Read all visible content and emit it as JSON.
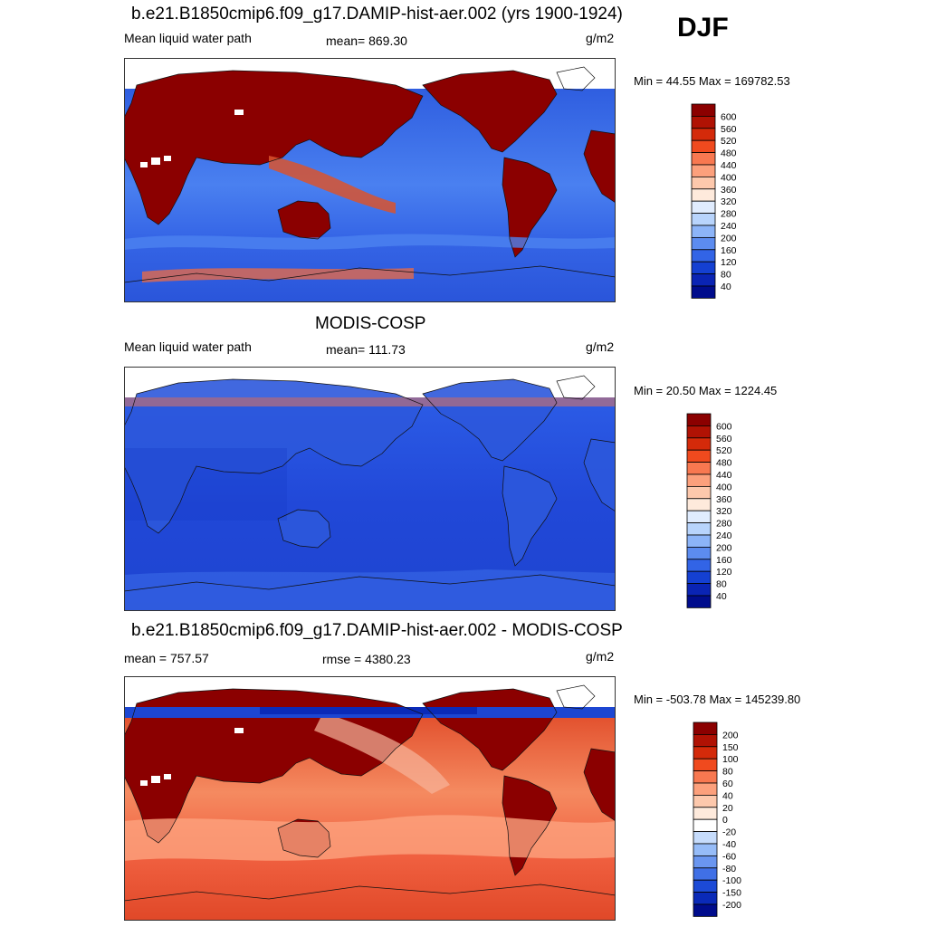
{
  "season": "DJF",
  "units": "g/m2",
  "panels": [
    {
      "title": "b.e21.B1850cmip6.f09_g17.DAMIP-hist-aer.002 (yrs 1900-1924)",
      "left_label": "Mean liquid water path",
      "center_label": "mean= 869.30",
      "units": "g/m2",
      "minmax": "Min =  44.55 Max = 169782.53",
      "field": "model"
    },
    {
      "title": "MODIS-COSP",
      "left_label": "Mean liquid water path",
      "center_label": "mean= 111.73",
      "units": "g/m2",
      "minmax": "Min =  20.50 Max = 1224.45",
      "field": "obs"
    },
    {
      "title": "b.e21.B1850cmip6.f09_g17.DAMIP-hist-aer.002 - MODIS-COSP",
      "left_label": "mean = 757.57",
      "center_label": "rmse = 4380.23",
      "units": "g/m2",
      "minmax": "Min = -503.78 Max = 145239.80",
      "field": "diff"
    }
  ],
  "colorbars": {
    "absolute": {
      "labels": [
        "600",
        "560",
        "520",
        "480",
        "440",
        "400",
        "360",
        "320",
        "280",
        "240",
        "200",
        "160",
        "120",
        "80",
        "40"
      ],
      "colors": [
        "#8B0000",
        "#B01204",
        "#D42A0A",
        "#F04A1E",
        "#F87850",
        "#FCA07C",
        "#FDC8AC",
        "#FEEADC",
        "#E0ECFE",
        "#B8D4FC",
        "#8CB4F8",
        "#5C8CF0",
        "#3264E6",
        "#1440D2",
        "#0A24B4",
        "#000C8C"
      ]
    },
    "difference": {
      "labels": [
        "200",
        "150",
        "100",
        "80",
        "60",
        "40",
        "20",
        "0",
        "-20",
        "-40",
        "-60",
        "-80",
        "-100",
        "-150",
        "-200"
      ],
      "colors": [
        "#8B0000",
        "#B01204",
        "#D42A0A",
        "#F04A1E",
        "#F87850",
        "#FCA07C",
        "#FDC8AC",
        "#FEEADC",
        "#FFFFFF",
        "#C6DCFC",
        "#96BCF8",
        "#6A96F0",
        "#4070E6",
        "#1C4AD6",
        "#0A2AB8",
        "#000C8C"
      ]
    }
  }
}
